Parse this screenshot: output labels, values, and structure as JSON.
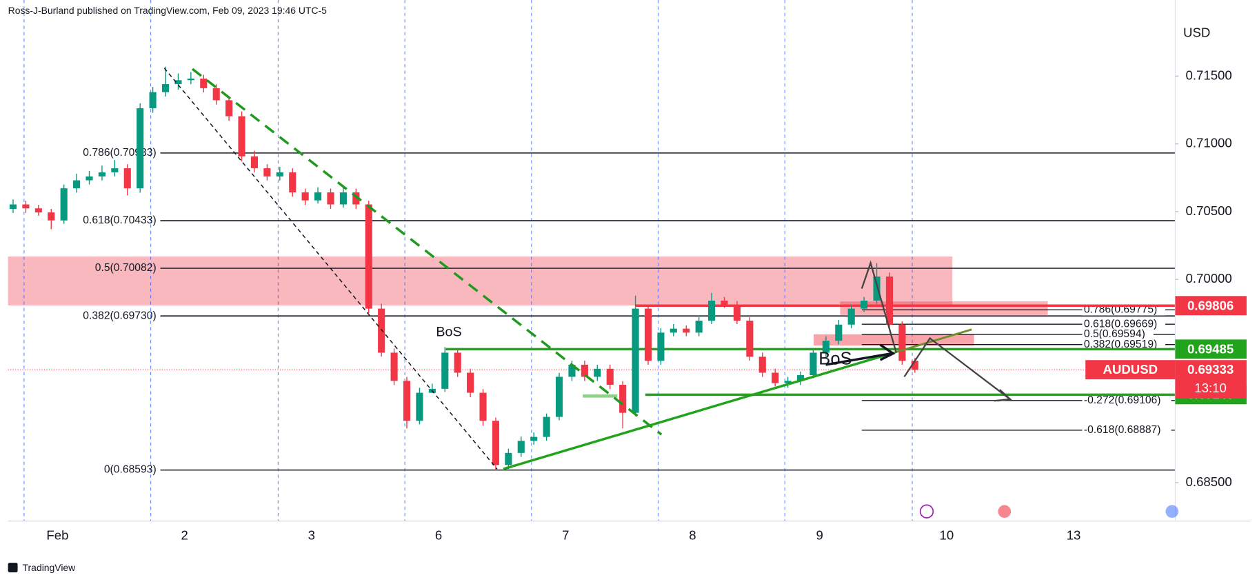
{
  "header": "Ross-J-Burland published on TradingView.com, Feb 09, 2023 19:46 UTC-5",
  "footer": "TradingView",
  "chart_data": {
    "type": "candlestick",
    "currency": "USD",
    "up_color": "#089981",
    "down_color": "#f23645",
    "xlim": [
      -0.39,
      8.8
    ],
    "xticks": [
      {
        "value": 0,
        "label": "Feb"
      },
      {
        "value": 1,
        "label": "2"
      },
      {
        "value": 2,
        "label": "3"
      },
      {
        "value": 3,
        "label": "6"
      },
      {
        "value": 4,
        "label": "7"
      },
      {
        "value": 5,
        "label": "8"
      },
      {
        "value": 6,
        "label": "9"
      },
      {
        "value": 7,
        "label": "10"
      },
      {
        "value": 8,
        "label": "13"
      }
    ],
    "ylim": [
      0.68216,
      0.72062
    ],
    "yticks": [
      {
        "value": 0.685,
        "label": "0.68500"
      },
      {
        "value": 0.7,
        "label": "0.70000"
      },
      {
        "value": 0.705,
        "label": "0.70500"
      },
      {
        "value": 0.71,
        "label": "0.71000"
      },
      {
        "value": 0.715,
        "label": "0.71500"
      }
    ],
    "x": [
      -0.35,
      -0.25,
      -0.15,
      -0.05,
      0.05,
      0.15,
      0.25,
      0.35,
      0.45,
      0.55,
      0.65,
      0.75,
      0.85,
      0.95,
      1.05,
      1.15,
      1.25,
      1.35,
      1.45,
      1.55,
      1.65,
      1.75,
      1.85,
      1.95,
      2.05,
      2.15,
      2.25,
      2.35,
      2.45,
      2.55,
      2.65,
      2.75,
      2.85,
      2.95,
      3.05,
      3.15,
      3.25,
      3.35,
      3.45,
      3.55,
      3.65,
      3.75,
      3.85,
      3.95,
      4.05,
      4.15,
      4.25,
      4.35,
      4.45,
      4.55,
      4.65,
      4.75,
      4.85,
      4.95,
      5.05,
      5.15,
      5.25,
      5.35,
      5.45,
      5.55,
      5.65,
      5.75,
      5.85,
      5.95,
      6.05,
      6.15,
      6.25,
      6.35,
      6.45,
      6.55,
      6.65,
      6.75
    ],
    "ohlc": [
      [
        0.7052,
        0.7059,
        0.7049,
        0.70553
      ],
      [
        0.70553,
        0.7058,
        0.7049,
        0.70524
      ],
      [
        0.70524,
        0.7055,
        0.7047,
        0.70494
      ],
      [
        0.70494,
        0.7052,
        0.7037,
        0.70435
      ],
      [
        0.70435,
        0.707,
        0.7041,
        0.70672
      ],
      [
        0.70672,
        0.7078,
        0.7064,
        0.70731
      ],
      [
        0.70731,
        0.708,
        0.707,
        0.7076
      ],
      [
        0.7076,
        0.7084,
        0.7073,
        0.7079
      ],
      [
        0.7079,
        0.7088,
        0.7076,
        0.7082
      ],
      [
        0.7082,
        0.7085,
        0.7062,
        0.70672
      ],
      [
        0.70672,
        0.713,
        0.7064,
        0.71263
      ],
      [
        0.71263,
        0.7142,
        0.7123,
        0.71382
      ],
      [
        0.71382,
        0.7157,
        0.7135,
        0.71441
      ],
      [
        0.71441,
        0.7152,
        0.714,
        0.7147
      ],
      [
        0.7147,
        0.7153,
        0.7144,
        0.71482
      ],
      [
        0.71482,
        0.7151,
        0.7138,
        0.71411
      ],
      [
        0.71411,
        0.7144,
        0.7129,
        0.71322
      ],
      [
        0.71322,
        0.7135,
        0.7117,
        0.71204
      ],
      [
        0.71204,
        0.7124,
        0.7087,
        0.70908
      ],
      [
        0.70908,
        0.7095,
        0.7079,
        0.7082
      ],
      [
        0.7082,
        0.7085,
        0.7073,
        0.7076
      ],
      [
        0.7076,
        0.7083,
        0.7073,
        0.7079
      ],
      [
        0.7079,
        0.7082,
        0.7061,
        0.70642
      ],
      [
        0.70642,
        0.7067,
        0.7055,
        0.70583
      ],
      [
        0.70583,
        0.7068,
        0.7056,
        0.70642
      ],
      [
        0.70642,
        0.7067,
        0.7052,
        0.70553
      ],
      [
        0.70553,
        0.7068,
        0.7053,
        0.70642
      ],
      [
        0.70642,
        0.7067,
        0.7052,
        0.70553
      ],
      [
        0.70553,
        0.7058,
        0.6975,
        0.69784
      ],
      [
        0.69784,
        0.6982,
        0.6943,
        0.69459
      ],
      [
        0.69459,
        0.6949,
        0.6922,
        0.69251
      ],
      [
        0.69251,
        0.6928,
        0.689,
        0.68956
      ],
      [
        0.68956,
        0.692,
        0.6893,
        0.69163
      ],
      [
        0.69163,
        0.6923,
        0.6916,
        0.69192
      ],
      [
        0.69192,
        0.695,
        0.6917,
        0.69459
      ],
      [
        0.69459,
        0.6949,
        0.6928,
        0.69311
      ],
      [
        0.69311,
        0.6934,
        0.6913,
        0.69163
      ],
      [
        0.69163,
        0.6919,
        0.6892,
        0.68956
      ],
      [
        0.68956,
        0.6898,
        0.68593,
        0.6863
      ],
      [
        0.6863,
        0.6875,
        0.686,
        0.68719
      ],
      [
        0.68719,
        0.6884,
        0.6869,
        0.68808
      ],
      [
        0.68808,
        0.6887,
        0.6878,
        0.68837
      ],
      [
        0.68837,
        0.6901,
        0.6881,
        0.68985
      ],
      [
        0.68985,
        0.6931,
        0.6896,
        0.69281
      ],
      [
        0.69281,
        0.694,
        0.6925,
        0.6937
      ],
      [
        0.6937,
        0.694,
        0.6925,
        0.69281
      ],
      [
        0.69281,
        0.6937,
        0.6925,
        0.6934
      ],
      [
        0.6934,
        0.6937,
        0.6919,
        0.69222
      ],
      [
        0.69222,
        0.6925,
        0.689,
        0.69015
      ],
      [
        0.69015,
        0.6988,
        0.6899,
        0.69784
      ],
      [
        0.69784,
        0.6981,
        0.6937,
        0.69399
      ],
      [
        0.69399,
        0.6964,
        0.6937,
        0.69607
      ],
      [
        0.69607,
        0.6967,
        0.6958,
        0.69636
      ],
      [
        0.69636,
        0.6966,
        0.6958,
        0.69607
      ],
      [
        0.69607,
        0.6972,
        0.6958,
        0.69695
      ],
      [
        0.69695,
        0.699,
        0.6967,
        0.69843
      ],
      [
        0.69843,
        0.6987,
        0.6979,
        0.69814
      ],
      [
        0.69814,
        0.6984,
        0.6967,
        0.69695
      ],
      [
        0.69695,
        0.6972,
        0.694,
        0.69429
      ],
      [
        0.69429,
        0.6946,
        0.6928,
        0.69311
      ],
      [
        0.69311,
        0.6934,
        0.6921,
        0.69234
      ],
      [
        0.69234,
        0.6928,
        0.692,
        0.69251
      ],
      [
        0.69251,
        0.6932,
        0.6922,
        0.69293
      ],
      [
        0.69293,
        0.6949,
        0.6927,
        0.69459
      ],
      [
        0.69459,
        0.6958,
        0.6943,
        0.69547
      ],
      [
        0.69547,
        0.697,
        0.6952,
        0.69666
      ],
      [
        0.69666,
        0.6981,
        0.6964,
        0.69784
      ],
      [
        0.69784,
        0.6987,
        0.6976,
        0.69843
      ],
      [
        0.69843,
        0.7012,
        0.6982,
        0.70021
      ],
      [
        0.70021,
        0.7005,
        0.6964,
        0.69666
      ],
      [
        0.69666,
        0.6969,
        0.6937,
        0.69399
      ],
      [
        0.69399,
        0.6942,
        0.6931,
        0.69333
      ]
    ],
    "fib_left": [
      {
        "label": "0.786(0.70933)",
        "value": 0.70933
      },
      {
        "label": "0.618(0.70433)",
        "value": 0.70433
      },
      {
        "label": "0.5(0.70082)",
        "value": 0.70082
      },
      {
        "label": "0.382(0.69730)",
        "value": 0.6973
      },
      {
        "label": "0(0.68593)",
        "value": 0.68593
      }
    ],
    "fib_right": [
      {
        "label": "0.786(0.69775)",
        "value": 0.69775
      },
      {
        "label": "0.618(0.69669)",
        "value": 0.69669
      },
      {
        "label": "0.5(0.69594)",
        "value": 0.69594
      },
      {
        "label": "0.382(0.69519)",
        "value": 0.69519
      },
      {
        "label": "-0.272(0.69106)",
        "value": 0.69106
      },
      {
        "label": "-0.618(0.68887)",
        "value": 0.68887
      }
    ],
    "annotations": [
      "BoS",
      "BoS"
    ],
    "price_tags": [
      {
        "value": 0.69806,
        "color": "#f23645"
      },
      {
        "value": 0.69485,
        "color": "#22a31c"
      },
      {
        "value": 0.69149,
        "color": "#22a31c"
      }
    ],
    "last_price": {
      "name": "AUDUSD",
      "value": 0.69333,
      "countdown": "13:10",
      "color": "#f23645"
    }
  }
}
